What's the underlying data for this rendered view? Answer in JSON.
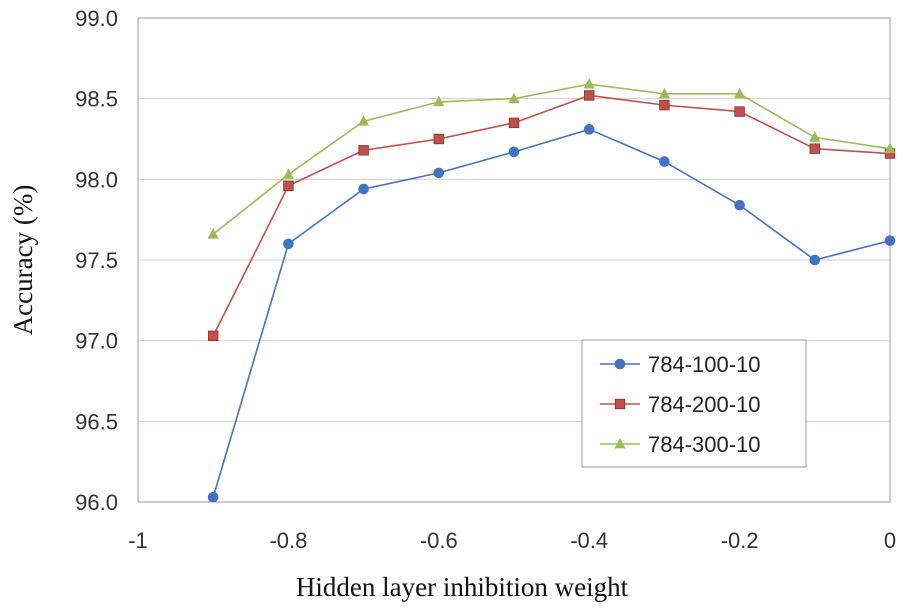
{
  "chart_data": {
    "type": "line",
    "title": "",
    "xlabel": "Hidden layer inhibition weight",
    "ylabel": "Accuracy (%)",
    "xlim": [
      -1,
      0
    ],
    "ylim": [
      96.0,
      99.0
    ],
    "xticks": [
      -1,
      -0.8,
      -0.6,
      -0.4,
      -0.2,
      0
    ],
    "xtick_labels": [
      "-1",
      "-0.8",
      "-0.6",
      "-0.4",
      "-0.2",
      "0"
    ],
    "yticks": [
      96.0,
      96.5,
      97.0,
      97.5,
      98.0,
      98.5,
      99.0
    ],
    "ytick_labels": [
      "96.0",
      "96.5",
      "97.0",
      "97.5",
      "98.0",
      "98.5",
      "99.0"
    ],
    "grid": "horizontal",
    "legend_position": "bottom-right",
    "x": [
      -0.9,
      -0.8,
      -0.7,
      -0.6,
      -0.5,
      -0.4,
      -0.3,
      -0.2,
      -0.1,
      0
    ],
    "series": [
      {
        "name": "784-100-10",
        "marker": "circle",
        "color": "#4472C4",
        "values": [
          96.03,
          97.6,
          97.94,
          98.04,
          98.17,
          98.31,
          98.11,
          97.84,
          97.5,
          97.62
        ]
      },
      {
        "name": "784-200-10",
        "marker": "square",
        "color": "#C0504D",
        "values": [
          97.03,
          97.96,
          98.18,
          98.25,
          98.35,
          98.52,
          98.46,
          98.42,
          98.19,
          98.16
        ]
      },
      {
        "name": "784-300-10",
        "marker": "triangle",
        "color": "#9BBB59",
        "values": [
          97.66,
          98.03,
          98.36,
          98.48,
          98.5,
          98.59,
          98.53,
          98.53,
          98.26,
          98.19
        ]
      }
    ]
  }
}
